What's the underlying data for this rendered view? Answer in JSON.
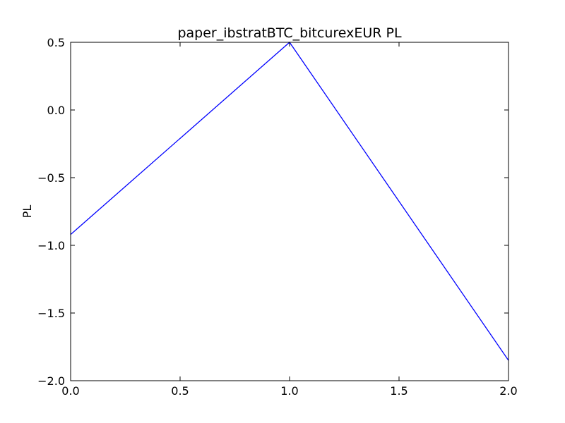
{
  "chart_data": {
    "type": "line",
    "title": "paper_ibstratBTC_bitcurexEUR PL",
    "xlabel": "",
    "ylabel": "PL",
    "xlim": [
      0.0,
      2.0
    ],
    "ylim": [
      -2.0,
      0.5
    ],
    "x_ticks": [
      0.0,
      0.5,
      1.0,
      1.5,
      2.0
    ],
    "x_tick_labels": [
      "0.0",
      "0.5",
      "1.0",
      "1.5",
      "2.0"
    ],
    "y_ticks": [
      0.5,
      0.0,
      -0.5,
      -1.0,
      -1.5,
      -2.0
    ],
    "y_tick_labels": [
      "0.5",
      "0.0",
      "−0.5",
      "−1.0",
      "−1.5",
      "−2.0"
    ],
    "grid": false,
    "series": [
      {
        "color": "#0000ff",
        "x": [
          0.0,
          1.0,
          2.0
        ],
        "y": [
          -0.92,
          0.5,
          -1.85
        ]
      }
    ]
  }
}
